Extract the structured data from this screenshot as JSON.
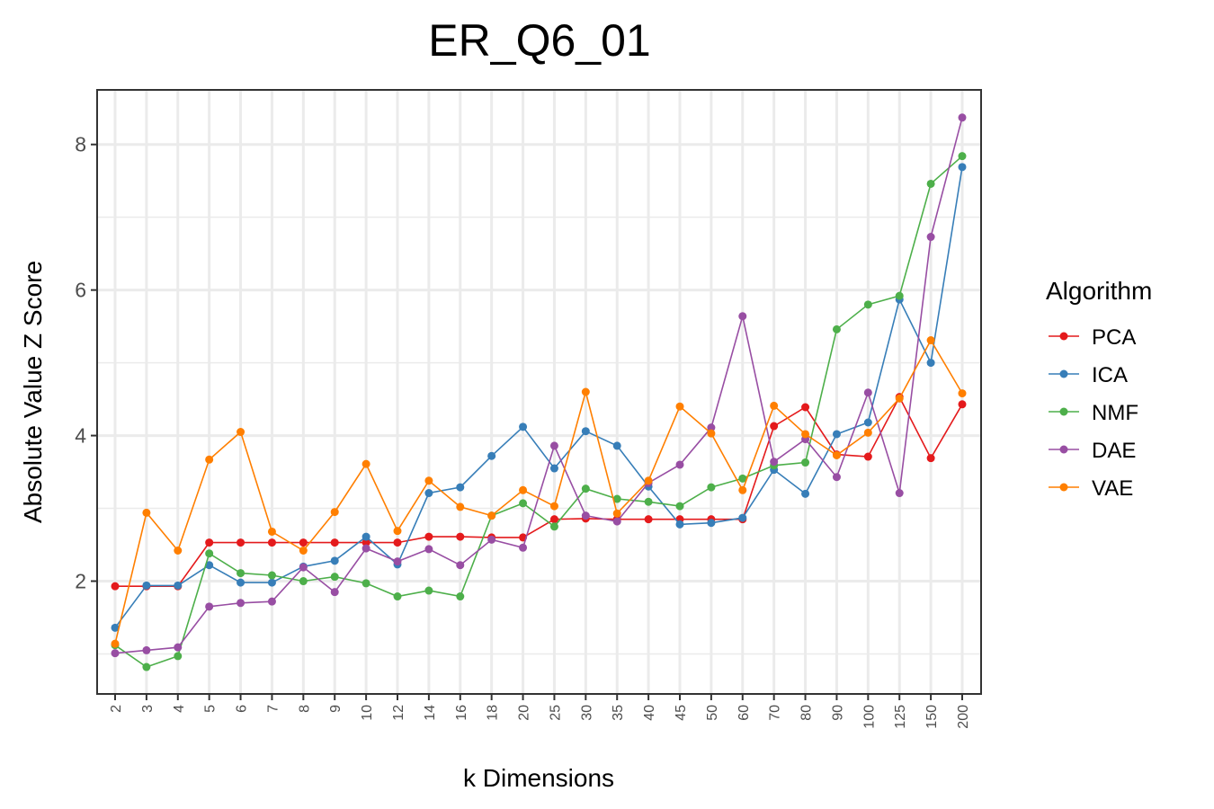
{
  "chart_data": {
    "type": "line",
    "title": "ER_Q6_01",
    "xlabel": "k Dimensions",
    "ylabel": "Absolute Value Z Score",
    "categories": [
      "2",
      "3",
      "4",
      "5",
      "6",
      "7",
      "8",
      "9",
      "10",
      "12",
      "14",
      "16",
      "18",
      "20",
      "25",
      "30",
      "35",
      "40",
      "45",
      "50",
      "60",
      "70",
      "80",
      "90",
      "100",
      "125",
      "150",
      "200"
    ],
    "ylim": [
      0.45,
      8.75
    ],
    "yticks": [
      2,
      4,
      6,
      8
    ],
    "grid": true,
    "legend": {
      "title": "Algorithm",
      "position": "right"
    },
    "series": [
      {
        "name": "PCA",
        "color": "#e41a1c",
        "values": [
          1.93,
          1.93,
          1.93,
          2.53,
          2.53,
          2.53,
          2.53,
          2.53,
          2.53,
          2.53,
          2.61,
          2.61,
          2.6,
          2.6,
          2.85,
          2.86,
          2.85,
          2.85,
          2.85,
          2.85,
          2.85,
          4.13,
          4.39,
          3.74,
          3.71,
          4.53,
          3.69,
          4.43
        ]
      },
      {
        "name": "ICA",
        "color": "#377eb8",
        "values": [
          1.36,
          1.94,
          1.94,
          2.22,
          1.98,
          1.98,
          2.2,
          2.28,
          2.61,
          2.23,
          3.21,
          3.29,
          3.72,
          4.12,
          3.55,
          4.06,
          3.86,
          3.3,
          2.78,
          2.8,
          2.87,
          3.53,
          3.2,
          4.02,
          4.18,
          5.87,
          5.0,
          7.69
        ]
      },
      {
        "name": "NMF",
        "color": "#4daf4a",
        "values": [
          1.12,
          0.82,
          0.97,
          2.38,
          2.11,
          2.08,
          2.0,
          2.06,
          1.97,
          1.79,
          1.87,
          1.79,
          2.9,
          3.07,
          2.75,
          3.27,
          3.13,
          3.09,
          3.03,
          3.29,
          3.41,
          3.59,
          3.63,
          5.46,
          5.8,
          5.92,
          7.46,
          7.84
        ]
      },
      {
        "name": "DAE",
        "color": "#984ea3",
        "values": [
          1.01,
          1.05,
          1.09,
          1.65,
          1.7,
          1.72,
          2.19,
          1.85,
          2.45,
          2.27,
          2.44,
          2.22,
          2.57,
          2.46,
          3.86,
          2.9,
          2.82,
          3.35,
          3.6,
          4.11,
          5.64,
          3.64,
          3.95,
          3.43,
          4.59,
          3.21,
          6.73,
          8.37
        ]
      },
      {
        "name": "VAE",
        "color": "#ff7f00",
        "values": [
          1.14,
          2.94,
          2.42,
          3.67,
          4.05,
          2.68,
          2.42,
          2.95,
          3.61,
          2.69,
          3.38,
          3.02,
          2.9,
          3.25,
          3.03,
          4.6,
          2.93,
          3.38,
          4.4,
          4.03,
          3.25,
          4.41,
          4.02,
          3.73,
          4.04,
          4.51,
          5.31,
          4.58
        ]
      }
    ]
  }
}
